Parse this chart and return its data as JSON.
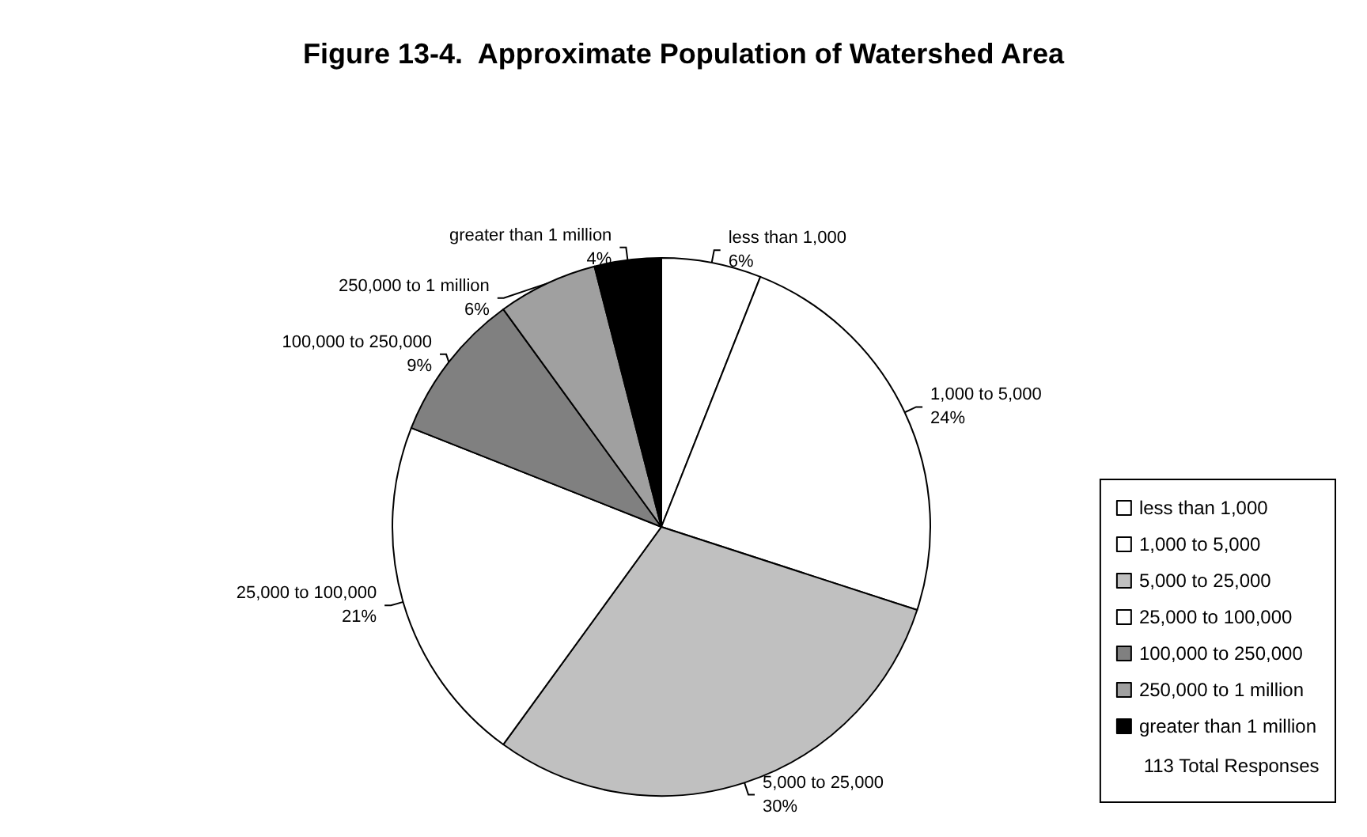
{
  "chart_data": {
    "type": "pie",
    "title": "Figure 13-4.  Approximate Population of Watershed Area",
    "categories": [
      "less than 1,000",
      "1,000 to 5,000",
      "5,000 to 25,000",
      "25,000 to 100,000",
      "100,000 to 250,000",
      "250,000 to 1 million",
      "greater than 1 million"
    ],
    "values": [
      6,
      24,
      30,
      21,
      9,
      6,
      4
    ],
    "value_labels": [
      "6%",
      "24%",
      "30%",
      "21%",
      "9%",
      "6%",
      "4%"
    ],
    "colors": [
      "#ffffff",
      "#ffffff",
      "#c0c0c0",
      "#ffffff",
      "#808080",
      "#a0a0a0",
      "#000000"
    ],
    "legend": "right",
    "annotations": [
      "113 Total Responses"
    ]
  }
}
